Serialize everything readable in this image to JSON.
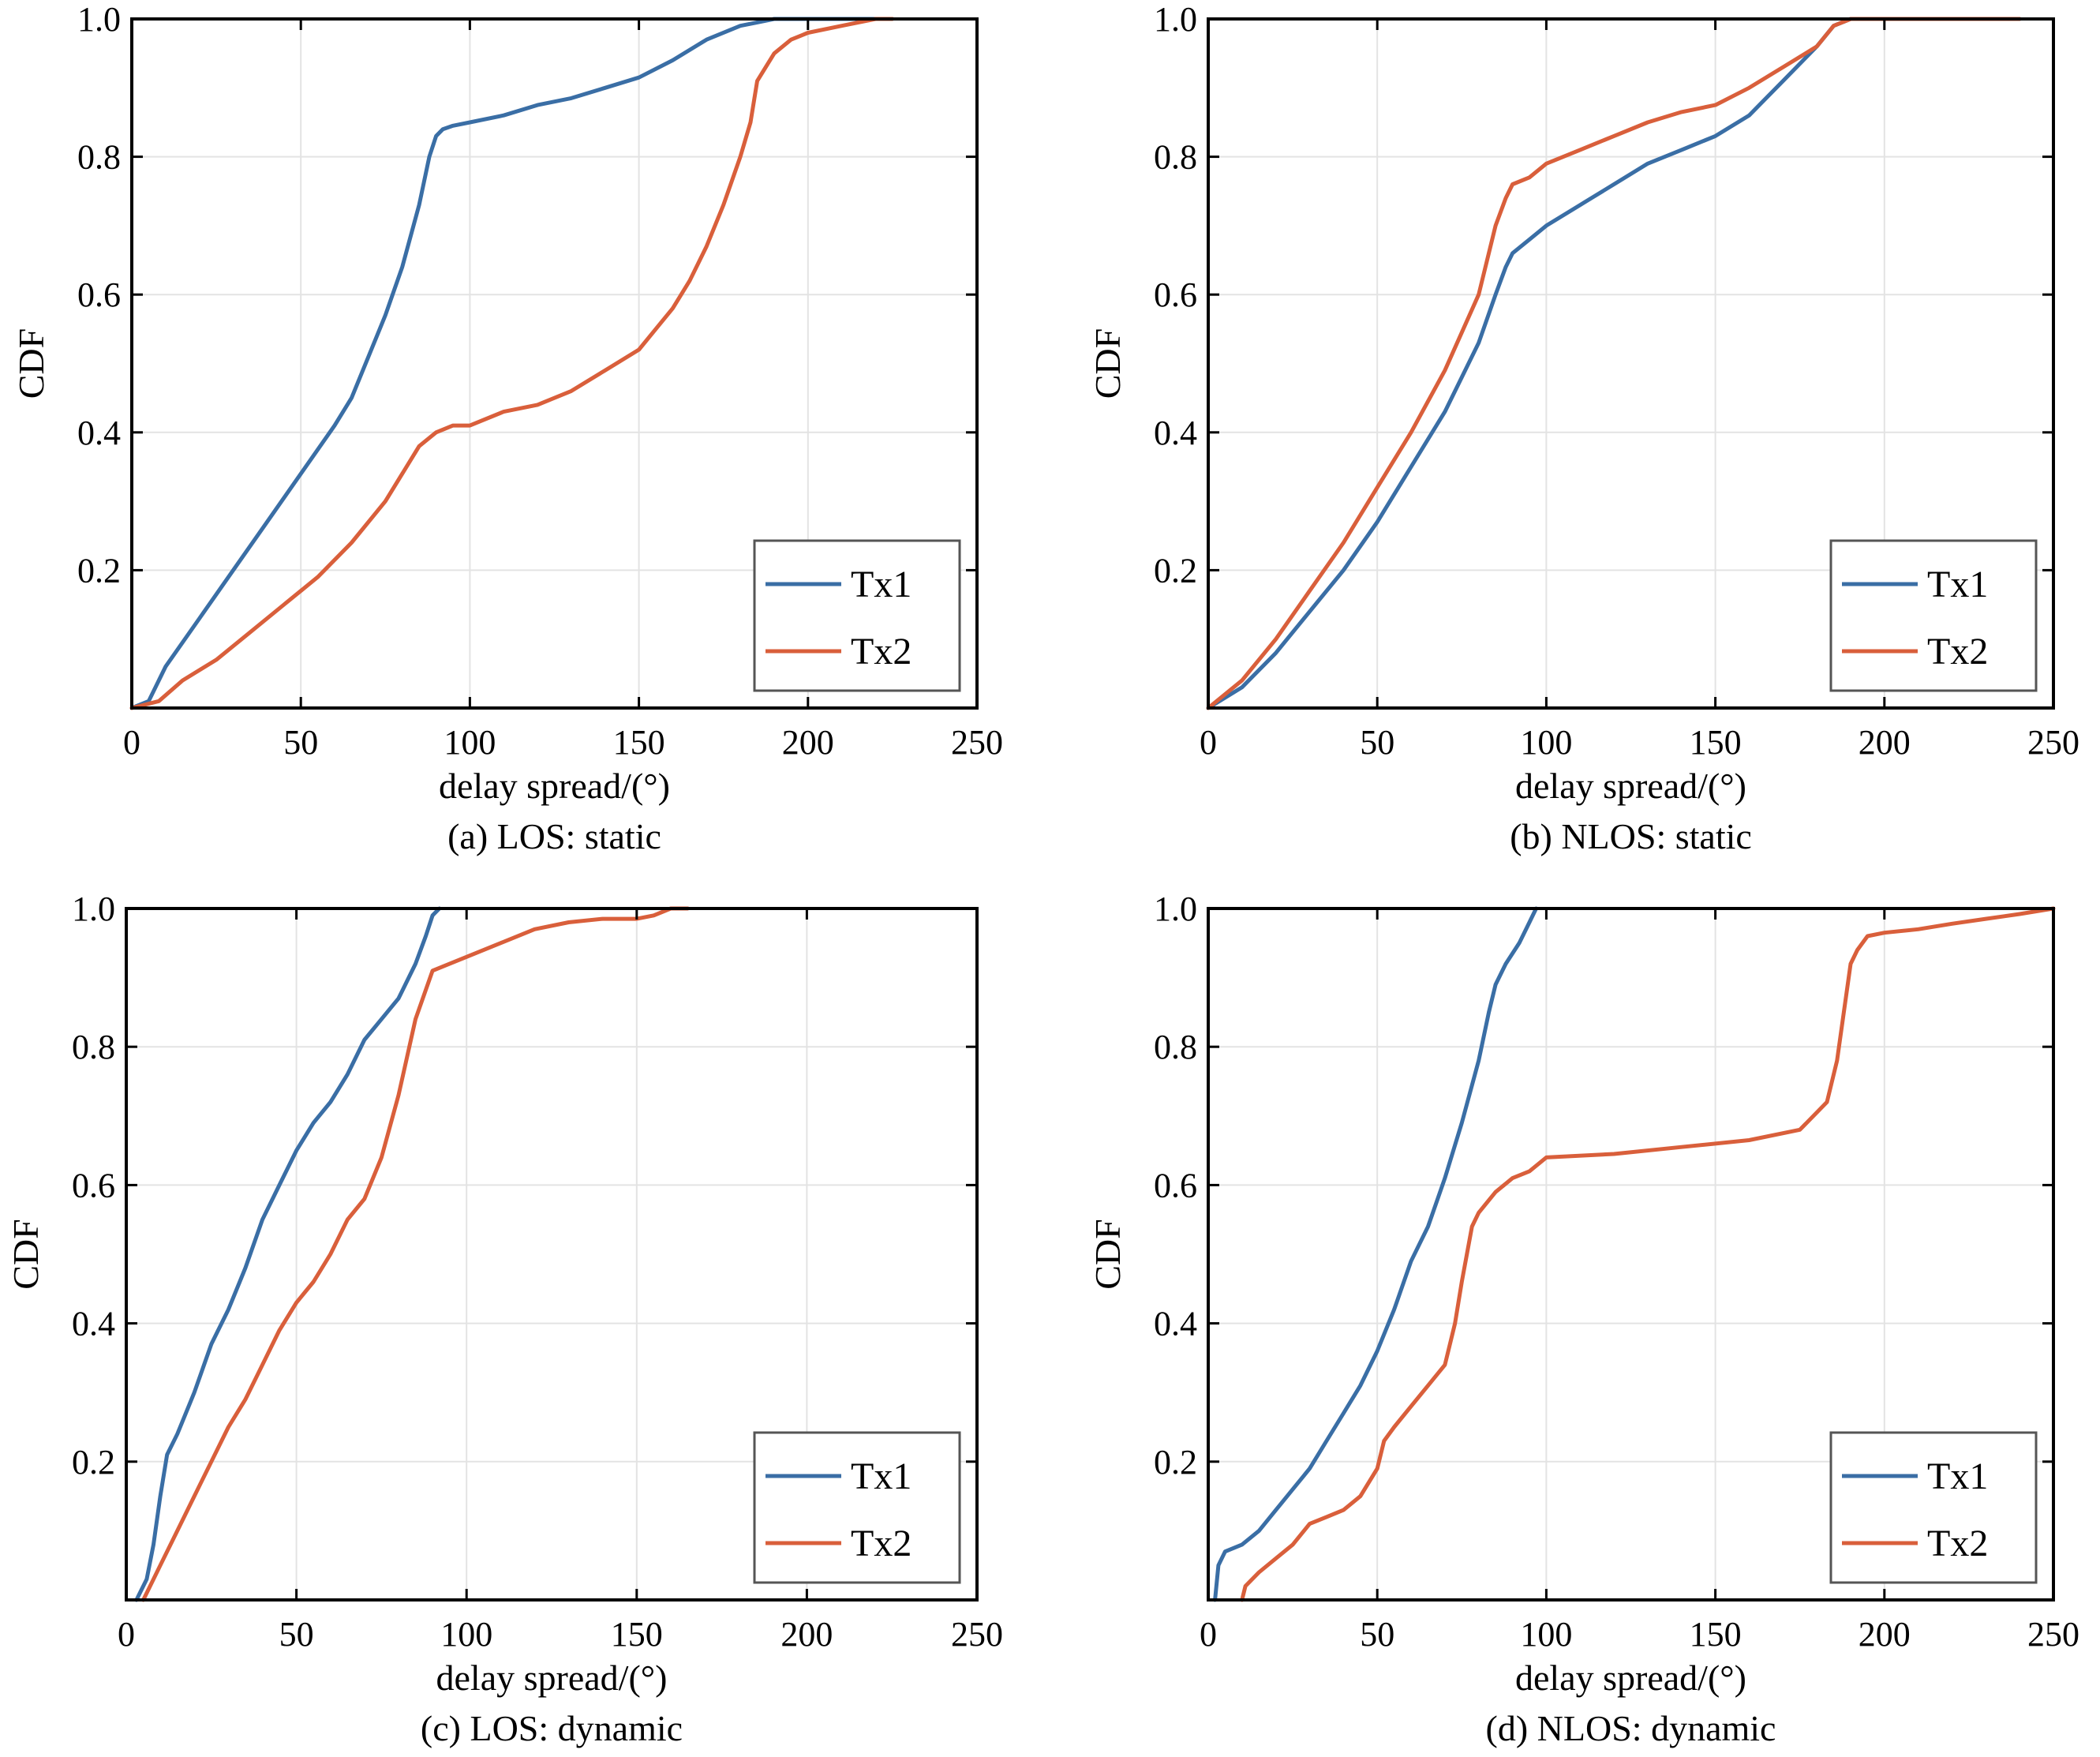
{
  "colors": {
    "tx1": "#3a6ea5",
    "tx2": "#d95f3b",
    "grid": "#e3e3e3",
    "frame": "#000000"
  },
  "chart_data": [
    {
      "type": "line",
      "caption": "(a) LOS: static",
      "xlabel": "delay spread/(°)",
      "ylabel": "CDF",
      "xlim": [
        0,
        250
      ],
      "ylim": [
        0,
        1
      ],
      "xticks": [
        0,
        50,
        100,
        150,
        200,
        250
      ],
      "xtick_labels": [
        "0",
        "50",
        "100",
        "150",
        "200",
        "250"
      ],
      "yticks": [
        0.2,
        0.4,
        0.6,
        0.8,
        1.0
      ],
      "ytick_labels": [
        "0.2",
        "0.4",
        "0.6",
        "0.8",
        "1.0"
      ],
      "grid": true,
      "legend": "bottom-right",
      "series": [
        {
          "name": "Tx1",
          "x": [
            0,
            5,
            10,
            20,
            30,
            40,
            50,
            60,
            65,
            70,
            75,
            80,
            85,
            88,
            90,
            92,
            95,
            100,
            110,
            120,
            130,
            140,
            150,
            160,
            170,
            180,
            185,
            190,
            195,
            200,
            210,
            220
          ],
          "y": [
            0,
            0.01,
            0.06,
            0.13,
            0.2,
            0.27,
            0.34,
            0.41,
            0.45,
            0.51,
            0.57,
            0.64,
            0.73,
            0.8,
            0.83,
            0.84,
            0.845,
            0.85,
            0.86,
            0.875,
            0.885,
            0.9,
            0.915,
            0.94,
            0.97,
            0.99,
            0.995,
            1.0,
            1.0,
            1.0,
            1.0,
            1.0
          ]
        },
        {
          "name": "Tx2",
          "x": [
            0,
            8,
            15,
            25,
            35,
            45,
            55,
            65,
            75,
            80,
            85,
            90,
            95,
            100,
            110,
            120,
            130,
            140,
            150,
            155,
            160,
            165,
            170,
            175,
            180,
            183,
            185,
            190,
            195,
            200,
            210,
            220,
            225
          ],
          "y": [
            0,
            0.01,
            0.04,
            0.07,
            0.11,
            0.15,
            0.19,
            0.24,
            0.3,
            0.34,
            0.38,
            0.4,
            0.41,
            0.41,
            0.43,
            0.44,
            0.46,
            0.49,
            0.52,
            0.55,
            0.58,
            0.62,
            0.67,
            0.73,
            0.8,
            0.85,
            0.91,
            0.95,
            0.97,
            0.98,
            0.99,
            1.0,
            1.0
          ]
        }
      ]
    },
    {
      "type": "line",
      "caption": "(b) NLOS: static",
      "xlabel": "delay spread/(°)",
      "ylabel": "CDF",
      "xlim": [
        0,
        250
      ],
      "ylim": [
        0,
        1
      ],
      "xticks": [
        0,
        50,
        100,
        150,
        200,
        250
      ],
      "xtick_labels": [
        "0",
        "50",
        "100",
        "150",
        "200",
        "250"
      ],
      "yticks": [
        0.2,
        0.4,
        0.6,
        0.8,
        1.0
      ],
      "ytick_labels": [
        "0.2",
        "0.4",
        "0.6",
        "0.8",
        "1.0"
      ],
      "grid": true,
      "legend": "bottom-right",
      "series": [
        {
          "name": "Tx1",
          "x": [
            0,
            10,
            20,
            30,
            40,
            50,
            60,
            70,
            80,
            85,
            88,
            90,
            95,
            100,
            110,
            120,
            130,
            140,
            150,
            160,
            170,
            180,
            185,
            190,
            200,
            220,
            240
          ],
          "y": [
            0,
            0.03,
            0.08,
            0.14,
            0.2,
            0.27,
            0.35,
            0.43,
            0.53,
            0.6,
            0.64,
            0.66,
            0.68,
            0.7,
            0.73,
            0.76,
            0.79,
            0.81,
            0.83,
            0.86,
            0.91,
            0.96,
            0.99,
            1.0,
            1.0,
            1.0,
            1.0
          ]
        },
        {
          "name": "Tx2",
          "x": [
            0,
            10,
            20,
            30,
            40,
            50,
            60,
            70,
            80,
            85,
            88,
            90,
            95,
            100,
            110,
            120,
            130,
            140,
            150,
            160,
            170,
            180,
            185,
            190,
            200,
            220,
            240
          ],
          "y": [
            0,
            0.04,
            0.1,
            0.17,
            0.24,
            0.32,
            0.4,
            0.49,
            0.6,
            0.7,
            0.74,
            0.76,
            0.77,
            0.79,
            0.81,
            0.83,
            0.85,
            0.865,
            0.875,
            0.9,
            0.93,
            0.96,
            0.99,
            1.0,
            1.0,
            1.0,
            1.0
          ]
        }
      ]
    },
    {
      "type": "line",
      "caption": "(c) LOS: dynamic",
      "xlabel": "delay spread/(°)",
      "ylabel": "CDF",
      "xlim": [
        0,
        250
      ],
      "ylim": [
        0,
        1
      ],
      "xticks": [
        0,
        50,
        100,
        150,
        200,
        250
      ],
      "xtick_labels": [
        "0",
        "50",
        "100",
        "150",
        "200",
        "250"
      ],
      "yticks": [
        0.2,
        0.4,
        0.6,
        0.8,
        1.0
      ],
      "ytick_labels": [
        "0.2",
        "0.4",
        "0.6",
        "0.8",
        "1.0"
      ],
      "grid": true,
      "legend": "bottom-right",
      "series": [
        {
          "name": "Tx1",
          "x": [
            3,
            6,
            8,
            10,
            12,
            15,
            20,
            25,
            30,
            35,
            40,
            45,
            50,
            55,
            60,
            65,
            70,
            75,
            80,
            85,
            88,
            90,
            92
          ],
          "y": [
            0,
            0.03,
            0.08,
            0.15,
            0.21,
            0.24,
            0.3,
            0.37,
            0.42,
            0.48,
            0.55,
            0.6,
            0.65,
            0.69,
            0.72,
            0.76,
            0.81,
            0.84,
            0.87,
            0.92,
            0.96,
            0.99,
            1.0
          ]
        },
        {
          "name": "Tx2",
          "x": [
            5,
            10,
            15,
            20,
            25,
            30,
            35,
            40,
            45,
            50,
            55,
            60,
            65,
            70,
            75,
            80,
            85,
            90,
            95,
            100,
            110,
            120,
            130,
            140,
            150,
            155,
            160,
            165
          ],
          "y": [
            0,
            0.05,
            0.1,
            0.15,
            0.2,
            0.25,
            0.29,
            0.34,
            0.39,
            0.43,
            0.46,
            0.5,
            0.55,
            0.58,
            0.64,
            0.73,
            0.84,
            0.91,
            0.92,
            0.93,
            0.95,
            0.97,
            0.98,
            0.985,
            0.985,
            0.99,
            1.0,
            1.0
          ]
        }
      ]
    },
    {
      "type": "line",
      "caption": "(d) NLOS: dynamic",
      "xlabel": "delay spread/(°)",
      "ylabel": "CDF",
      "xlim": [
        0,
        250
      ],
      "ylim": [
        0,
        1
      ],
      "xticks": [
        0,
        50,
        100,
        150,
        200,
        250
      ],
      "xtick_labels": [
        "0",
        "50",
        "100",
        "150",
        "200",
        "250"
      ],
      "yticks": [
        0.2,
        0.4,
        0.6,
        0.8,
        1.0
      ],
      "ytick_labels": [
        "0.2",
        "0.4",
        "0.6",
        "0.8",
        "1.0"
      ],
      "grid": true,
      "legend": "bottom-right",
      "series": [
        {
          "name": "Tx1",
          "x": [
            2,
            3,
            5,
            10,
            15,
            20,
            25,
            30,
            35,
            40,
            45,
            50,
            55,
            60,
            65,
            70,
            75,
            80,
            83,
            85,
            88,
            92,
            95,
            97
          ],
          "y": [
            0,
            0.05,
            0.07,
            0.08,
            0.1,
            0.13,
            0.16,
            0.19,
            0.23,
            0.27,
            0.31,
            0.36,
            0.42,
            0.49,
            0.54,
            0.61,
            0.69,
            0.78,
            0.85,
            0.89,
            0.92,
            0.95,
            0.98,
            1.0
          ]
        },
        {
          "name": "Tx2",
          "x": [
            10,
            11,
            15,
            20,
            25,
            30,
            35,
            40,
            45,
            50,
            52,
            55,
            60,
            65,
            70,
            73,
            75,
            78,
            80,
            85,
            90,
            95,
            100,
            120,
            140,
            160,
            175,
            183,
            186,
            188,
            190,
            192,
            195,
            200,
            210,
            220,
            230,
            240,
            250
          ],
          "y": [
            0,
            0.02,
            0.04,
            0.06,
            0.08,
            0.11,
            0.12,
            0.13,
            0.15,
            0.19,
            0.23,
            0.25,
            0.28,
            0.31,
            0.34,
            0.4,
            0.46,
            0.54,
            0.56,
            0.59,
            0.61,
            0.62,
            0.64,
            0.645,
            0.655,
            0.665,
            0.68,
            0.72,
            0.78,
            0.85,
            0.92,
            0.94,
            0.96,
            0.965,
            0.97,
            0.978,
            0.985,
            0.992,
            1.0
          ]
        }
      ]
    }
  ]
}
